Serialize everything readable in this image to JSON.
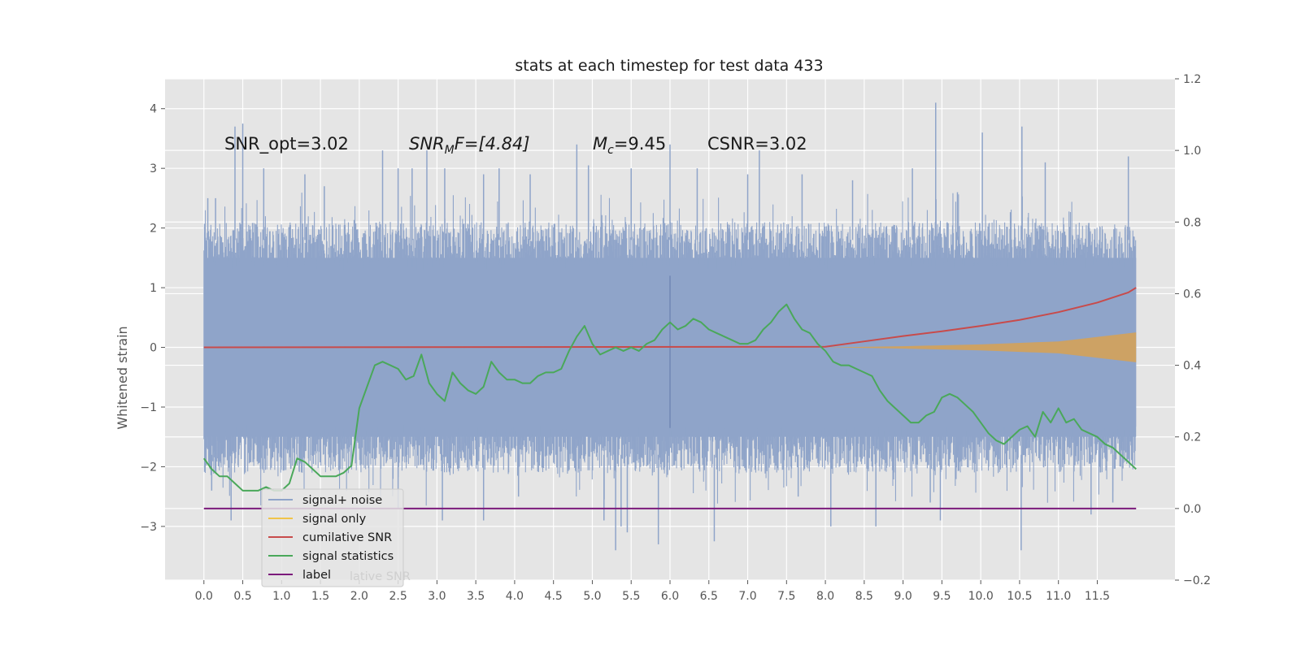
{
  "chart_data": {
    "type": "line",
    "title": "stats at each timestep for test data 433",
    "ylabel": "Whitened strain",
    "xlabel": "",
    "xlim": [
      -0.5,
      12.5
    ],
    "ylim": [
      -3.9,
      4.5
    ],
    "y2lim": [
      -0.2,
      1.2
    ],
    "grid": true,
    "x_ticks": [
      "0.0",
      "0.5",
      "1.0",
      "1.5",
      "2.0",
      "2.5",
      "3.0",
      "3.5",
      "4.0",
      "4.5",
      "5.0",
      "5.5",
      "6.0",
      "6.5",
      "7.0",
      "7.5",
      "8.0",
      "8.5",
      "9.0",
      "9.5",
      "10.0",
      "10.5",
      "11.0",
      "11.5"
    ],
    "y_ticks": [
      "4",
      "3",
      "2",
      "1",
      "0",
      "−1",
      "−2",
      "−3"
    ],
    "y2_ticks": [
      "1.2",
      "1.0",
      "0.8",
      "0.6",
      "0.4",
      "0.2",
      "0.0",
      "−0.2"
    ],
    "annotations": [
      {
        "text": "SNR_opt=3.02",
        "italic": false
      },
      {
        "base": "SNR",
        "sub": "M",
        "rest": "F=[4.84]",
        "italic": true
      },
      {
        "base": "M",
        "sub": "c",
        "rest": "=9.45",
        "italic": true
      },
      {
        "text": "CSNR=3.02",
        "italic": false
      }
    ],
    "legend": {
      "position": "lower-left",
      "entries": [
        {
          "label": "signal+ noise",
          "color": "#8fa4c9"
        },
        {
          "label": "signal only",
          "color": "#f0c44a"
        },
        {
          "label": "cumilative SNR",
          "color": "#c84b4b"
        },
        {
          "label": "signal statistics",
          "color": "#4aa85a"
        },
        {
          "label": "label",
          "color": "#7b1a7b"
        }
      ],
      "ghost_text": "lative SNR"
    },
    "series": [
      {
        "name": "signal+ noise",
        "axis": "left",
        "style": "noise",
        "color": "#8fa4c9",
        "x_range": [
          0.0,
          12.0
        ],
        "envelope_upper": 2.0,
        "envelope_lower": -2.0,
        "peaks": [
          [
            0.05,
            2.5
          ],
          [
            0.15,
            2.5
          ],
          [
            0.4,
            3.7
          ],
          [
            0.5,
            3.75
          ],
          [
            0.77,
            3.0
          ],
          [
            1.3,
            2.9
          ],
          [
            1.55,
            2.7
          ],
          [
            2.3,
            3.3
          ],
          [
            2.5,
            3.0
          ],
          [
            2.68,
            3.0
          ],
          [
            2.87,
            3.3
          ],
          [
            3.1,
            3.0
          ],
          [
            3.6,
            2.9
          ],
          [
            3.8,
            3.0
          ],
          [
            4.2,
            2.9
          ],
          [
            4.8,
            3.4
          ],
          [
            4.95,
            3.05
          ],
          [
            5.5,
            3.0
          ],
          [
            6.0,
            3.4
          ],
          [
            6.35,
            3.0
          ],
          [
            7.0,
            2.9
          ],
          [
            7.15,
            3.3
          ],
          [
            7.7,
            2.9
          ],
          [
            8.35,
            2.8
          ],
          [
            9.12,
            3.0
          ],
          [
            9.42,
            4.1
          ],
          [
            9.7,
            2.6
          ],
          [
            10.02,
            3.6
          ],
          [
            10.53,
            3.7
          ],
          [
            10.83,
            3.1
          ],
          [
            11.9,
            3.2
          ]
        ],
        "troughs": [
          [
            0.1,
            -2.4
          ],
          [
            0.35,
            -2.9
          ],
          [
            2.5,
            -2.7
          ],
          [
            3.07,
            -2.9
          ],
          [
            3.6,
            -2.9
          ],
          [
            4.05,
            -2.5
          ],
          [
            5.15,
            -2.9
          ],
          [
            5.3,
            -3.4
          ],
          [
            5.37,
            -3.0
          ],
          [
            5.45,
            -3.1
          ],
          [
            5.85,
            -3.3
          ],
          [
            6.57,
            -3.25
          ],
          [
            7.65,
            -2.5
          ],
          [
            8.07,
            -3.0
          ],
          [
            8.65,
            -3.0
          ],
          [
            9.35,
            -2.6
          ],
          [
            9.48,
            -2.9
          ],
          [
            10.52,
            -3.4
          ],
          [
            11.42,
            -2.8
          ],
          [
            11.7,
            -2.6
          ]
        ]
      },
      {
        "name": "signal only",
        "axis": "left",
        "style": "band",
        "color": "#d4a259",
        "x": [
          8.0,
          9.0,
          10.0,
          11.0,
          12.0
        ],
        "half_width": [
          0.0,
          0.02,
          0.05,
          0.1,
          0.25
        ]
      },
      {
        "name": "cumilative SNR",
        "axis": "left",
        "color": "#c84b4b",
        "x": [
          0.0,
          8.0,
          8.5,
          9.0,
          9.5,
          10.0,
          10.5,
          11.0,
          11.5,
          11.9,
          12.0
        ],
        "y": [
          0.0,
          0.01,
          0.1,
          0.19,
          0.27,
          0.36,
          0.46,
          0.59,
          0.75,
          0.92,
          1.0
        ]
      },
      {
        "name": "signal statistics",
        "axis": "right",
        "color": "#4aa85a",
        "x": [
          0.0,
          0.1,
          0.2,
          0.3,
          0.4,
          0.5,
          0.6,
          0.7,
          0.8,
          0.9,
          1.0,
          1.1,
          1.2,
          1.3,
          1.4,
          1.5,
          1.6,
          1.7,
          1.8,
          1.9,
          2.0,
          2.1,
          2.2,
          2.3,
          2.4,
          2.5,
          2.6,
          2.7,
          2.8,
          2.9,
          3.0,
          3.1,
          3.2,
          3.3,
          3.4,
          3.5,
          3.6,
          3.7,
          3.8,
          3.9,
          4.0,
          4.1,
          4.2,
          4.3,
          4.4,
          4.5,
          4.6,
          4.7,
          4.8,
          4.9,
          5.0,
          5.1,
          5.2,
          5.3,
          5.4,
          5.5,
          5.6,
          5.7,
          5.8,
          5.9,
          6.0,
          6.1,
          6.2,
          6.3,
          6.4,
          6.5,
          6.6,
          6.7,
          6.8,
          6.9,
          7.0,
          7.1,
          7.2,
          7.3,
          7.4,
          7.5,
          7.6,
          7.7,
          7.8,
          7.9,
          8.0,
          8.1,
          8.2,
          8.3,
          8.4,
          8.5,
          8.6,
          8.7,
          8.8,
          8.9,
          9.0,
          9.1,
          9.2,
          9.3,
          9.4,
          9.5,
          9.6,
          9.7,
          9.8,
          9.9,
          10.0,
          10.1,
          10.2,
          10.3,
          10.4,
          10.5,
          10.6,
          10.7,
          10.8,
          10.9,
          11.0,
          11.1,
          11.2,
          11.3,
          11.4,
          11.5,
          11.6,
          11.7,
          11.8,
          11.9,
          12.0
        ],
        "y": [
          0.14,
          0.11,
          0.09,
          0.09,
          0.07,
          0.05,
          0.05,
          0.05,
          0.06,
          0.05,
          0.05,
          0.07,
          0.14,
          0.13,
          0.11,
          0.09,
          0.09,
          0.09,
          0.1,
          0.12,
          0.28,
          0.34,
          0.4,
          0.41,
          0.4,
          0.39,
          0.36,
          0.37,
          0.43,
          0.35,
          0.32,
          0.3,
          0.38,
          0.35,
          0.33,
          0.32,
          0.34,
          0.41,
          0.38,
          0.36,
          0.36,
          0.35,
          0.35,
          0.37,
          0.38,
          0.38,
          0.39,
          0.44,
          0.48,
          0.51,
          0.46,
          0.43,
          0.44,
          0.45,
          0.44,
          0.45,
          0.44,
          0.46,
          0.47,
          0.5,
          0.52,
          0.5,
          0.51,
          0.53,
          0.52,
          0.5,
          0.49,
          0.48,
          0.47,
          0.46,
          0.46,
          0.47,
          0.5,
          0.52,
          0.55,
          0.57,
          0.53,
          0.5,
          0.49,
          0.46,
          0.44,
          0.41,
          0.4,
          0.4,
          0.39,
          0.38,
          0.37,
          0.33,
          0.3,
          0.28,
          0.26,
          0.24,
          0.24,
          0.26,
          0.27,
          0.31,
          0.32,
          0.31,
          0.29,
          0.27,
          0.24,
          0.21,
          0.19,
          0.18,
          0.2,
          0.22,
          0.23,
          0.2,
          0.27,
          0.24,
          0.28,
          0.24,
          0.25,
          0.22,
          0.21,
          0.2,
          0.18,
          0.17,
          0.15,
          0.13,
          0.11
        ]
      },
      {
        "name": "label",
        "axis": "right",
        "color": "#7b1a7b",
        "x": [
          0.0,
          12.0
        ],
        "y": [
          0.0,
          0.0
        ]
      }
    ]
  }
}
